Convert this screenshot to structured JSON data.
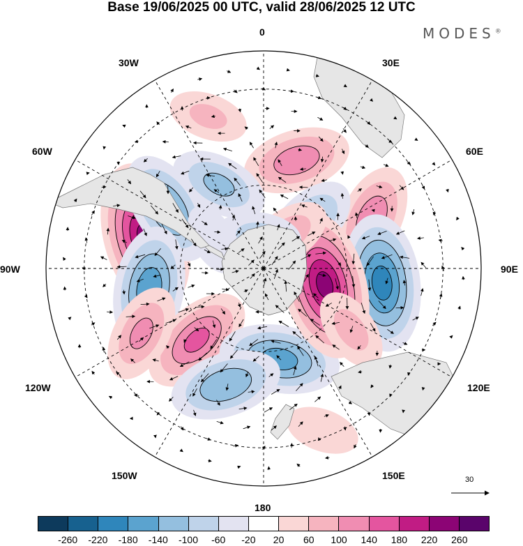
{
  "title": "Base 19/06/2025 00 UTC, valid 28/06/2025 12 UTC",
  "logo": {
    "text": "MODES",
    "mark": "®"
  },
  "projection": "south-polar-stereographic",
  "longitude_labels": {
    "lon_0": "0",
    "lon_30e": "30E",
    "lon_60e": "60E",
    "lon_90e": "90E",
    "lon_120e": "120E",
    "lon_150e": "150E",
    "lon_180": "180",
    "lon_150w": "150W",
    "lon_120w": "120W",
    "lon_90w": "90W",
    "lon_60w": "60W",
    "lon_30w": "30W"
  },
  "reference_vector": {
    "label": "30"
  },
  "colorbar": {
    "ticks": [
      "-260",
      "-220",
      "-180",
      "-140",
      "-100",
      "-60",
      "-20",
      "20",
      "60",
      "100",
      "140",
      "180",
      "220",
      "260"
    ],
    "colors": [
      "#0d3a5c",
      "#17618f",
      "#2f86bb",
      "#5ba3cf",
      "#94bfdf",
      "#bfd3ea",
      "#e3e3f1",
      "#ffffff",
      "#fad7d6",
      "#f6b4bf",
      "#f08db2",
      "#e4559f",
      "#c11c84",
      "#8c0475",
      "#5a046b"
    ]
  },
  "anomalies": [
    {
      "lon": 17,
      "lat": -50,
      "value": 130
    },
    {
      "lon": -28,
      "lat": -56,
      "value": -110
    },
    {
      "lon": -75,
      "lat": -47,
      "value": 230
    },
    {
      "lon": -58,
      "lat": -50,
      "value": -150
    },
    {
      "lon": -100,
      "lat": -49,
      "value": -170
    },
    {
      "lon": -137,
      "lat": -55,
      "value": 150
    },
    {
      "lon": -118,
      "lat": -42,
      "value": 110
    },
    {
      "lon": 170,
      "lat": -57,
      "value": -160
    },
    {
      "lon": -162,
      "lat": -47,
      "value": -140
    },
    {
      "lon": 65,
      "lat": -48,
      "value": 130
    },
    {
      "lon": 45,
      "lat": -67,
      "value": -120
    },
    {
      "lon": 97,
      "lat": -48,
      "value": -200
    },
    {
      "lon": 105,
      "lat": -67,
      "value": 230
    },
    {
      "lon": 125,
      "lat": -52,
      "value": 80
    },
    {
      "lon": -60,
      "lat": -69,
      "value": -60
    },
    {
      "lon": 35,
      "lat": -75,
      "value": 90
    },
    {
      "lon": -8,
      "lat": -78,
      "value": -80
    },
    {
      "lon": -20,
      "lat": -35,
      "value": 70
    },
    {
      "lon": 160,
      "lat": -32,
      "value": 60
    }
  ]
}
